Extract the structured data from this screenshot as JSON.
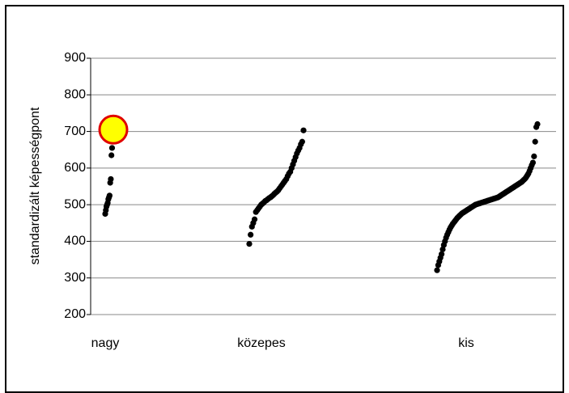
{
  "chart_data": {
    "type": "scatter",
    "y_label": "standardizált képességpont",
    "categories": [
      "nagy",
      "közepes",
      "kis"
    ],
    "series": [
      {
        "name": "nagy",
        "color": "#000000",
        "values": [
          475,
          485,
          495,
          500,
          505,
          515,
          520,
          525,
          560,
          570,
          635,
          655,
          680,
          705
        ]
      },
      {
        "name": "közepes",
        "color": "#000000",
        "values": [
          393,
          418,
          440,
          450,
          460,
          480,
          485,
          490,
          495,
          500,
          503,
          506,
          510,
          512,
          515,
          518,
          520,
          523,
          526,
          530,
          533,
          536,
          540,
          545,
          550,
          555,
          560,
          565,
          570,
          578,
          585,
          590,
          600,
          610,
          620,
          630,
          640,
          648,
          655,
          665,
          672,
          703
        ]
      },
      {
        "name": "kis",
        "color": "#000000",
        "values": [
          321,
          335,
          345,
          355,
          365,
          378,
          390,
          400,
          410,
          418,
          425,
          432,
          438,
          443,
          448,
          452,
          456,
          460,
          464,
          467,
          470,
          473,
          476,
          478,
          480,
          482,
          484,
          486,
          488,
          490,
          492,
          494,
          496,
          498,
          500,
          501,
          502,
          503,
          504,
          505,
          506,
          507,
          508,
          509,
          510,
          511,
          512,
          513,
          514,
          515,
          516,
          517,
          518,
          519,
          520,
          522,
          524,
          526,
          528,
          530,
          532,
          534,
          536,
          538,
          540,
          542,
          544,
          546,
          548,
          550,
          552,
          554,
          556,
          558,
          560,
          562,
          565,
          568,
          571,
          575,
          580,
          585,
          592,
          600,
          608,
          615,
          632,
          672,
          712,
          720
        ]
      }
    ],
    "highlight": {
      "series": 0,
      "value": 705,
      "fill": "#ffff00",
      "stroke": "#e00000"
    },
    "ylim": [
      200,
      900
    ],
    "yticks": [
      200,
      300,
      400,
      500,
      600,
      700,
      800,
      900
    ],
    "grid": true
  }
}
